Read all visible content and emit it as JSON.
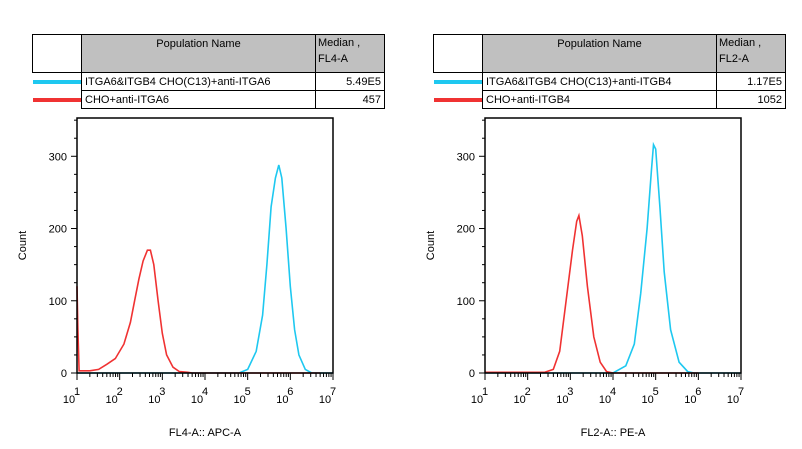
{
  "colors": {
    "series1": "#1ec8f0",
    "series2": "#f03232",
    "header_bg": "#c0c0c0"
  },
  "chart_data": [
    {
      "type": "line",
      "xscale": "log",
      "xlim": [
        10,
        10000000
      ],
      "ylim": [
        0,
        353
      ],
      "xlabel": "FL4-A:: APC-A",
      "ylabel": "Count",
      "ytick_labels": [
        "0",
        "100",
        "200",
        "300"
      ],
      "yticks": [
        0,
        100,
        200,
        300
      ],
      "xtick_labels": [
        {
          "base": "10",
          "exp": "1"
        },
        {
          "base": "10",
          "exp": "2"
        },
        {
          "base": "10",
          "exp": "3"
        },
        {
          "base": "10",
          "exp": "4"
        },
        {
          "base": "10",
          "exp": "5"
        },
        {
          "base": "10",
          "exp": "6"
        },
        {
          "base": "10",
          "exp": "7"
        }
      ],
      "legend": {
        "col_name": "Population Name",
        "col_stat_line1": "Median ,",
        "col_stat_line2": "FL4-A",
        "rows": [
          {
            "name": "ITGA6&ITGB4 CHO(C13)+anti-ITGA6",
            "value": "5.49E5",
            "color": "#1ec8f0"
          },
          {
            "name": "CHO+anti-ITGA6",
            "value": "457",
            "color": "#f03232"
          }
        ]
      },
      "series": [
        {
          "name": "ITGA6&ITGB4 CHO(C13)+anti-ITGA6",
          "color": "#1ec8f0",
          "x": [
            10,
            63096,
            100000,
            158489,
            223872,
            281838,
            354813,
            446684,
            537032,
            630957,
            794328,
            1000000,
            1258925,
            1584893,
            2238721,
            3162278,
            10000000
          ],
          "y": [
            0,
            0,
            5,
            30,
            80,
            150,
            230,
            270,
            288,
            270,
            200,
            120,
            60,
            25,
            5,
            0,
            0
          ]
        },
        {
          "name": "CHO+anti-ITGA6",
          "color": "#f03232",
          "x": [
            10,
            10.5,
            11.2,
            20,
            32,
            50,
            79,
            126,
            178,
            224,
            282,
            355,
            447,
            525,
            631,
            794,
            1000,
            1259,
            1778,
            2512,
            3981,
            5012,
            100000,
            5000000
          ],
          "y": [
            120,
            60,
            3,
            3,
            5,
            12,
            20,
            40,
            70,
            100,
            130,
            155,
            170,
            170,
            150,
            100,
            55,
            25,
            8,
            2,
            1,
            0,
            0,
            0
          ]
        }
      ]
    },
    {
      "type": "line",
      "xscale": "log",
      "xlim": [
        10,
        10000000
      ],
      "ylim": [
        0,
        353
      ],
      "xlabel": "FL2-A:: PE-A",
      "ylabel": "Count",
      "ytick_labels": [
        "0",
        "100",
        "200",
        "300"
      ],
      "yticks": [
        0,
        100,
        200,
        300
      ],
      "xtick_labels": [
        {
          "base": "10",
          "exp": "1"
        },
        {
          "base": "10",
          "exp": "2"
        },
        {
          "base": "10",
          "exp": "3"
        },
        {
          "base": "10",
          "exp": "4"
        },
        {
          "base": "10",
          "exp": "5"
        },
        {
          "base": "10",
          "exp": "6"
        },
        {
          "base": "10",
          "exp": "7"
        }
      ],
      "legend": {
        "col_name": "Population Name",
        "col_stat_line1": "Median ,",
        "col_stat_line2": "FL2-A",
        "rows": [
          {
            "name": "ITGA6&ITGB4 CHO(C13)+anti-ITGB4",
            "value": "1.17E5",
            "color": "#1ec8f0"
          },
          {
            "name": "CHO+anti-ITGB4",
            "value": "1052",
            "color": "#f03232"
          }
        ]
      },
      "series": [
        {
          "name": "ITGA6&ITGB4 CHO(C13)+anti-ITGB4",
          "color": "#1ec8f0",
          "x": [
            10,
            10000,
            19953,
            31623,
            44668,
            63096,
            79433,
            89125,
            100000,
            125893,
            158489,
            223872,
            354813,
            562341,
            794328,
            10000000
          ],
          "y": [
            0,
            0,
            10,
            40,
            110,
            200,
            280,
            316,
            310,
            230,
            140,
            60,
            15,
            2,
            0,
            0
          ]
        },
        {
          "name": "CHO+anti-ITGB4",
          "color": "#f03232",
          "x": [
            10,
            251,
            398,
            562,
            794,
            1122,
            1413,
            1585,
            1905,
            2512,
            3548,
            5012,
            7079,
            10000,
            1000000
          ],
          "y": [
            1,
            1,
            5,
            30,
            100,
            170,
            210,
            218,
            190,
            120,
            50,
            15,
            2,
            0,
            0
          ]
        }
      ]
    }
  ]
}
